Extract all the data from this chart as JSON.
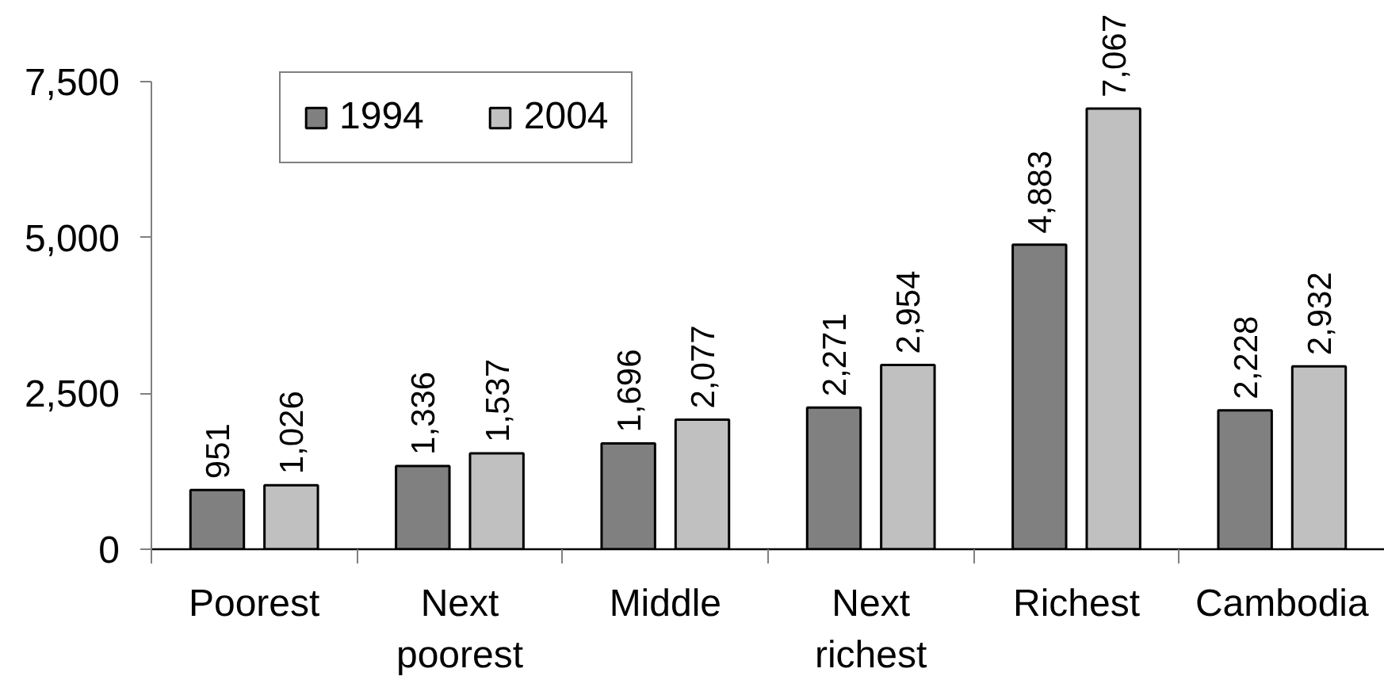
{
  "chart_data": {
    "type": "bar",
    "categories": [
      "Poorest",
      "Next poorest",
      "Middle",
      "Next richest",
      "Richest",
      "Cambodia"
    ],
    "series": [
      {
        "name": "1994",
        "color": "#808080",
        "values": [
          951,
          1336,
          1696,
          2271,
          4883,
          2228
        ],
        "value_labels": [
          "951",
          "1,336",
          "1,696",
          "2,271",
          "4,883",
          "2,228"
        ]
      },
      {
        "name": "2004",
        "color": "#c0c0c0",
        "values": [
          1026,
          1537,
          2077,
          2954,
          7067,
          2932
        ],
        "value_labels": [
          "1,026",
          "1,537",
          "2,077",
          "2,954",
          "7,067",
          "2,932"
        ]
      }
    ],
    "ylim": [
      0,
      7500
    ],
    "yticks": [
      0,
      {
        "value": 2500,
        "label": "2,500"
      },
      {
        "value": 5000,
        "label": "5,000"
      },
      {
        "value": 7500,
        "label": "7,500"
      }
    ],
    "legend": "top left",
    "grid": false
  }
}
